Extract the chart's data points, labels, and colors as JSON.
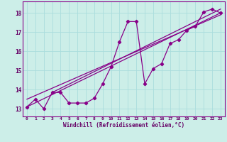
{
  "xlabel": "Windchill (Refroidissement éolien,°C)",
  "bg_color": "#cceee8",
  "line_color": "#880088",
  "grid_color": "#aadddd",
  "text_color": "#660066",
  "xlim": [
    -0.5,
    23.5
  ],
  "ylim": [
    12.6,
    18.6
  ],
  "yticks": [
    13,
    14,
    15,
    16,
    17,
    18
  ],
  "xticks": [
    0,
    1,
    2,
    3,
    4,
    5,
    6,
    7,
    8,
    9,
    10,
    11,
    12,
    13,
    14,
    15,
    16,
    17,
    18,
    19,
    20,
    21,
    22,
    23
  ],
  "series1_x": [
    0,
    1,
    2,
    3,
    4,
    5,
    6,
    7,
    8,
    9,
    10,
    11,
    12,
    13,
    14,
    15,
    16,
    17,
    18,
    19,
    20,
    21,
    22,
    23
  ],
  "series1_y": [
    13.1,
    13.5,
    13.0,
    13.85,
    13.85,
    13.3,
    13.3,
    13.3,
    13.55,
    14.3,
    15.2,
    16.5,
    17.55,
    17.55,
    14.3,
    15.1,
    15.35,
    16.4,
    16.6,
    17.1,
    17.3,
    18.05,
    18.2,
    18.0
  ],
  "line2_x": [
    0,
    23
  ],
  "line2_y": [
    13.1,
    18.0
  ],
  "line3_x": [
    0,
    23
  ],
  "line3_y": [
    13.5,
    17.9
  ],
  "line4_x": [
    3,
    23
  ],
  "line4_y": [
    13.85,
    18.2
  ]
}
